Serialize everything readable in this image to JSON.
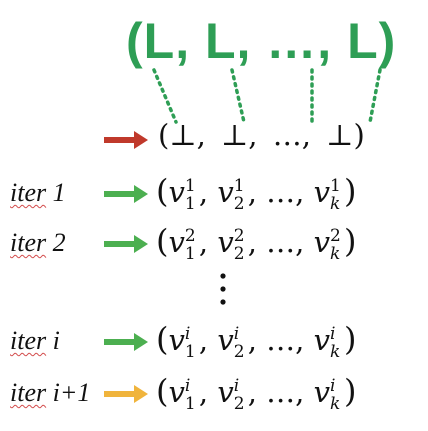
{
  "header": {
    "tuple": "(L, L, …, L)",
    "color": "#2e9e55"
  },
  "init_row": {
    "tuple": "(⊥,  ⊥,  …,  ⊥)",
    "arrow_color": "#c0392b"
  },
  "rows": [
    {
      "label": "iter 1",
      "label_word": "iter",
      "label_num": "1",
      "arrow_color": "#4caf50",
      "superscript": "1",
      "sub_first": "1",
      "sub_second": "2",
      "sub_last": "k",
      "symbol": "v",
      "ellipsis": "…"
    },
    {
      "label": "iter 2",
      "label_word": "iter",
      "label_num": "2",
      "arrow_color": "#4caf50",
      "superscript": "2",
      "sub_first": "1",
      "sub_second": "2",
      "sub_last": "k",
      "symbol": "v",
      "ellipsis": "…"
    },
    {
      "label": "iter i",
      "label_word": "iter",
      "label_num": "i",
      "arrow_color": "#4caf50",
      "superscript": "i",
      "sub_first": "1",
      "sub_second": "2",
      "sub_last": "k",
      "symbol": "v",
      "ellipsis": "…"
    },
    {
      "label": "iter i+1",
      "label_word": "iter",
      "label_num": "i+1",
      "arrow_color": "#f0b43c",
      "superscript": "i",
      "sub_first": "1",
      "sub_second": "2",
      "sub_last": "k",
      "symbol": "v",
      "ellipsis": "…"
    }
  ],
  "colors": {
    "connector": "#2e9e55",
    "text": "#111111",
    "spellcheck_underline": "#d24b4b"
  },
  "icons": {
    "init_arrow": "red-right-arrow-icon",
    "iter_arrow": "green-right-arrow-icon",
    "next_arrow": "yellow-right-arrow-icon",
    "vertical_ellipsis": "vertical-dots-icon"
  }
}
